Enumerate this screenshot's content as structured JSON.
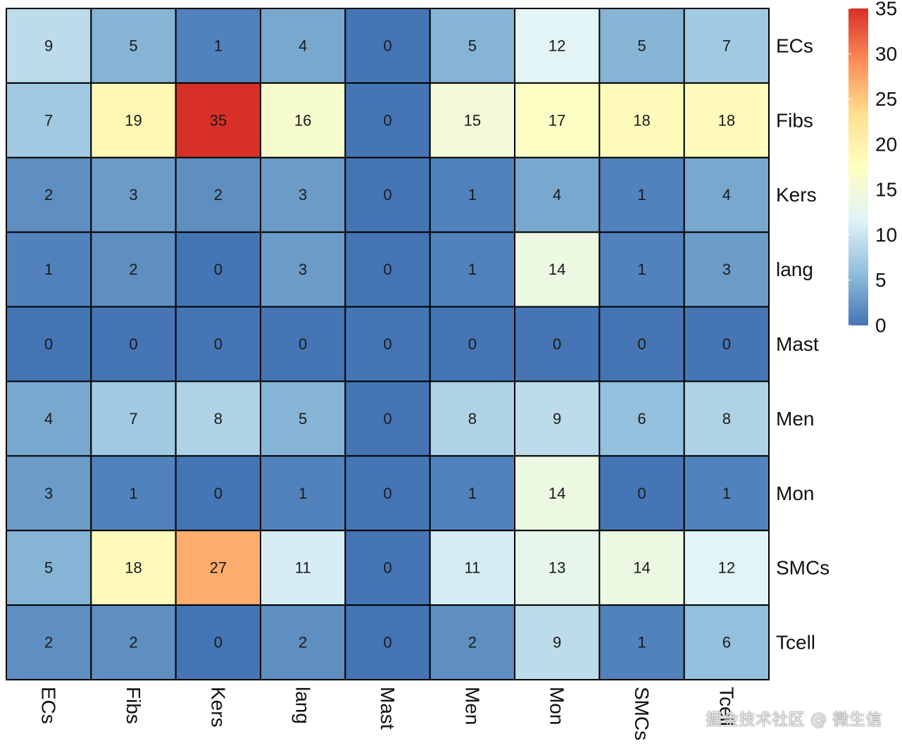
{
  "chart_data": {
    "type": "heatmap",
    "row_labels": [
      "ECs",
      "Fibs",
      "Kers",
      "lang",
      "Mast",
      "Men",
      "Mon",
      "SMCs",
      "Tcell"
    ],
    "col_labels": [
      "ECs",
      "Fibs",
      "Kers",
      "lang",
      "Mast",
      "Men",
      "Mon",
      "SMCs",
      "Tcell"
    ],
    "values": [
      [
        9,
        5,
        1,
        4,
        0,
        5,
        12,
        5,
        7
      ],
      [
        7,
        19,
        35,
        16,
        0,
        15,
        17,
        18,
        18
      ],
      [
        2,
        3,
        2,
        3,
        0,
        1,
        4,
        1,
        4
      ],
      [
        1,
        2,
        0,
        3,
        0,
        1,
        14,
        1,
        3
      ],
      [
        0,
        0,
        0,
        0,
        0,
        0,
        0,
        0,
        0
      ],
      [
        4,
        7,
        8,
        5,
        0,
        8,
        9,
        6,
        8
      ],
      [
        3,
        1,
        0,
        1,
        0,
        1,
        14,
        0,
        1
      ],
      [
        5,
        18,
        27,
        11,
        0,
        11,
        13,
        14,
        12
      ],
      [
        2,
        2,
        0,
        2,
        0,
        2,
        9,
        1,
        6
      ]
    ],
    "colorbar": {
      "min": 0,
      "max": 35,
      "ticks": [
        0,
        5,
        10,
        15,
        20,
        25,
        30,
        35
      ],
      "colors": [
        "#4575B4",
        "#91BFDB",
        "#E0F3F8",
        "#FFFFBF",
        "#FEE090",
        "#FC8D59",
        "#D73027"
      ]
    },
    "cell_border_color": "#000000",
    "title": "",
    "xlabel": "",
    "ylabel": ""
  },
  "watermark": "掘金技术社区 @ 微生信"
}
